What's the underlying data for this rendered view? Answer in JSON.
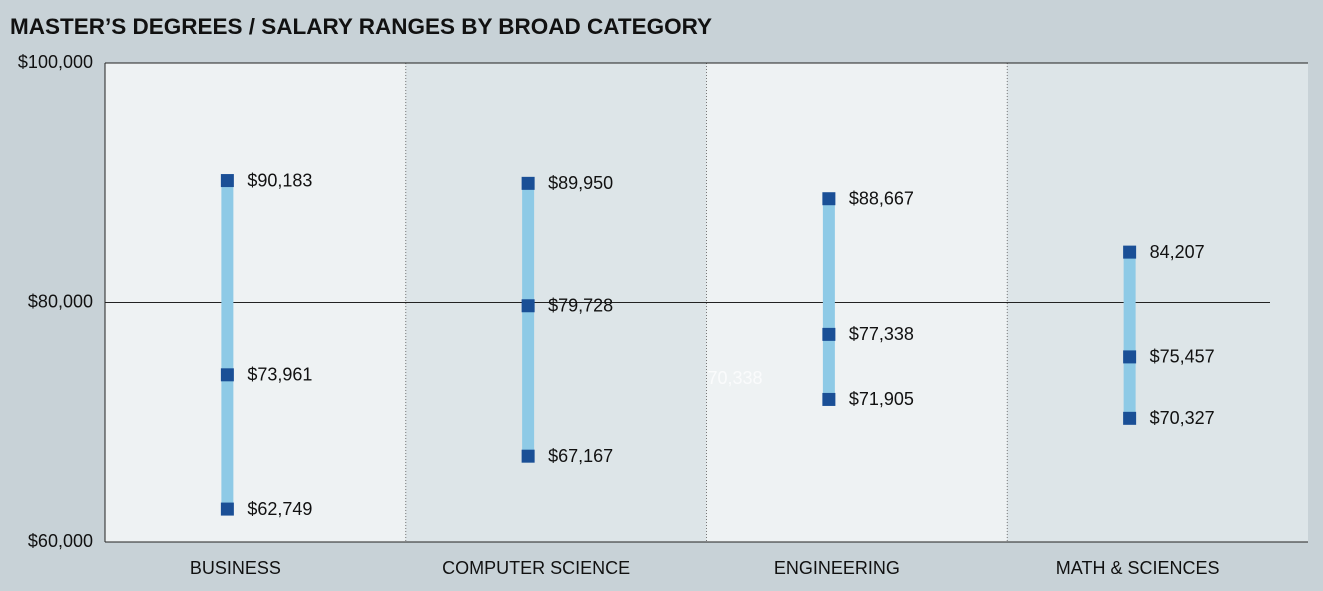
{
  "chart_data": {
    "type": "range",
    "title": "MASTER’S DEGREES / SALARY RANGES BY BROAD CATEGORY",
    "categories": [
      "BUSINESS",
      "COMPUTER SCIENCE",
      "ENGINEERING",
      "MATH & SCIENCES"
    ],
    "series": [
      {
        "color": "#1a4f96",
        "values": [
          62749,
          67167,
          71905,
          70327
        ],
        "value_labels": [
          "$62,749",
          "$67,167",
          "$71,905",
          "$70,327"
        ]
      },
      {
        "color": "#1a4f96",
        "values": [
          73961,
          79728,
          77338,
          75457
        ],
        "value_labels": [
          "$73,961",
          "$79,728",
          "$77,338",
          "$75,457"
        ]
      },
      {
        "color": "#1a4f96",
        "values": [
          90183,
          89950,
          88667,
          84207
        ],
        "value_labels": [
          "$90,183",
          "$89,950",
          "$88,667",
          "84,207"
        ]
      }
    ],
    "range_color": "#8ecae6",
    "annotations": [
      "70,338"
    ],
    "ylim": [
      60000,
      100000
    ],
    "yticks": [
      {
        "value": 60000,
        "label": "$60,000"
      },
      {
        "value": 80000,
        "label": "$80,000"
      },
      {
        "value": 100000,
        "label": "$100,000"
      }
    ],
    "grid": true
  }
}
